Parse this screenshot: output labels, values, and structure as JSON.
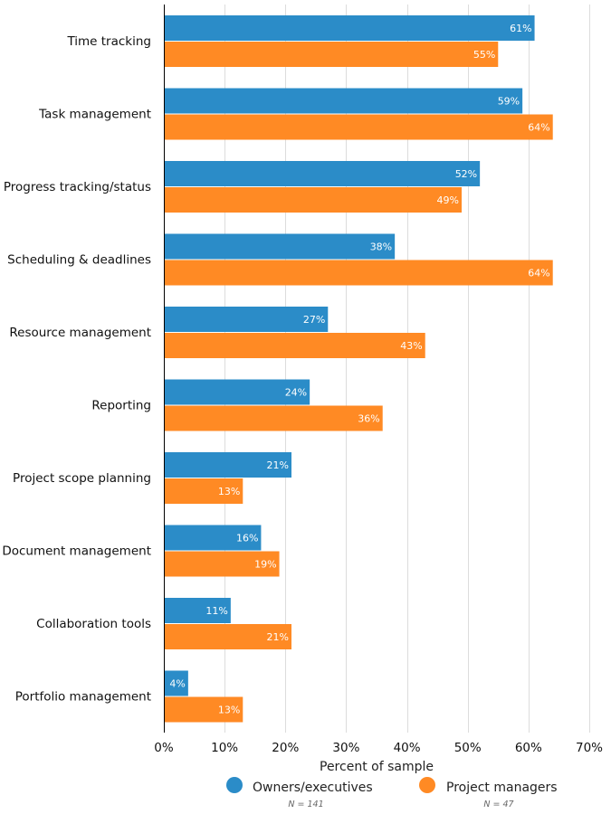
{
  "chart_data": {
    "type": "bar",
    "orientation": "horizontal",
    "categories": [
      "Time tracking",
      "Task management",
      "Progress tracking/status",
      "Scheduling & deadlines",
      "Resource management",
      "Reporting",
      "Project scope planning",
      "Document management",
      "Collaboration tools",
      "Portfolio management"
    ],
    "series": [
      {
        "name": "Owners/executives",
        "note": "N = 141",
        "color": "#2b8cc8",
        "values": [
          61,
          59,
          52,
          38,
          27,
          24,
          21,
          16,
          11,
          4
        ]
      },
      {
        "name": "Project managers",
        "note": "N = 47",
        "color": "#ff8a24",
        "values": [
          55,
          64,
          49,
          64,
          43,
          36,
          13,
          19,
          21,
          13
        ]
      }
    ],
    "xlabel": "Percent of sample",
    "ylabel": "",
    "xlim": [
      0,
      70
    ],
    "xticks": [
      "0%",
      "10%",
      "20%",
      "30%",
      "40%",
      "50%",
      "60%",
      "70%"
    ],
    "value_suffix": "%",
    "grid": "vertical",
    "legend": "bottom"
  }
}
